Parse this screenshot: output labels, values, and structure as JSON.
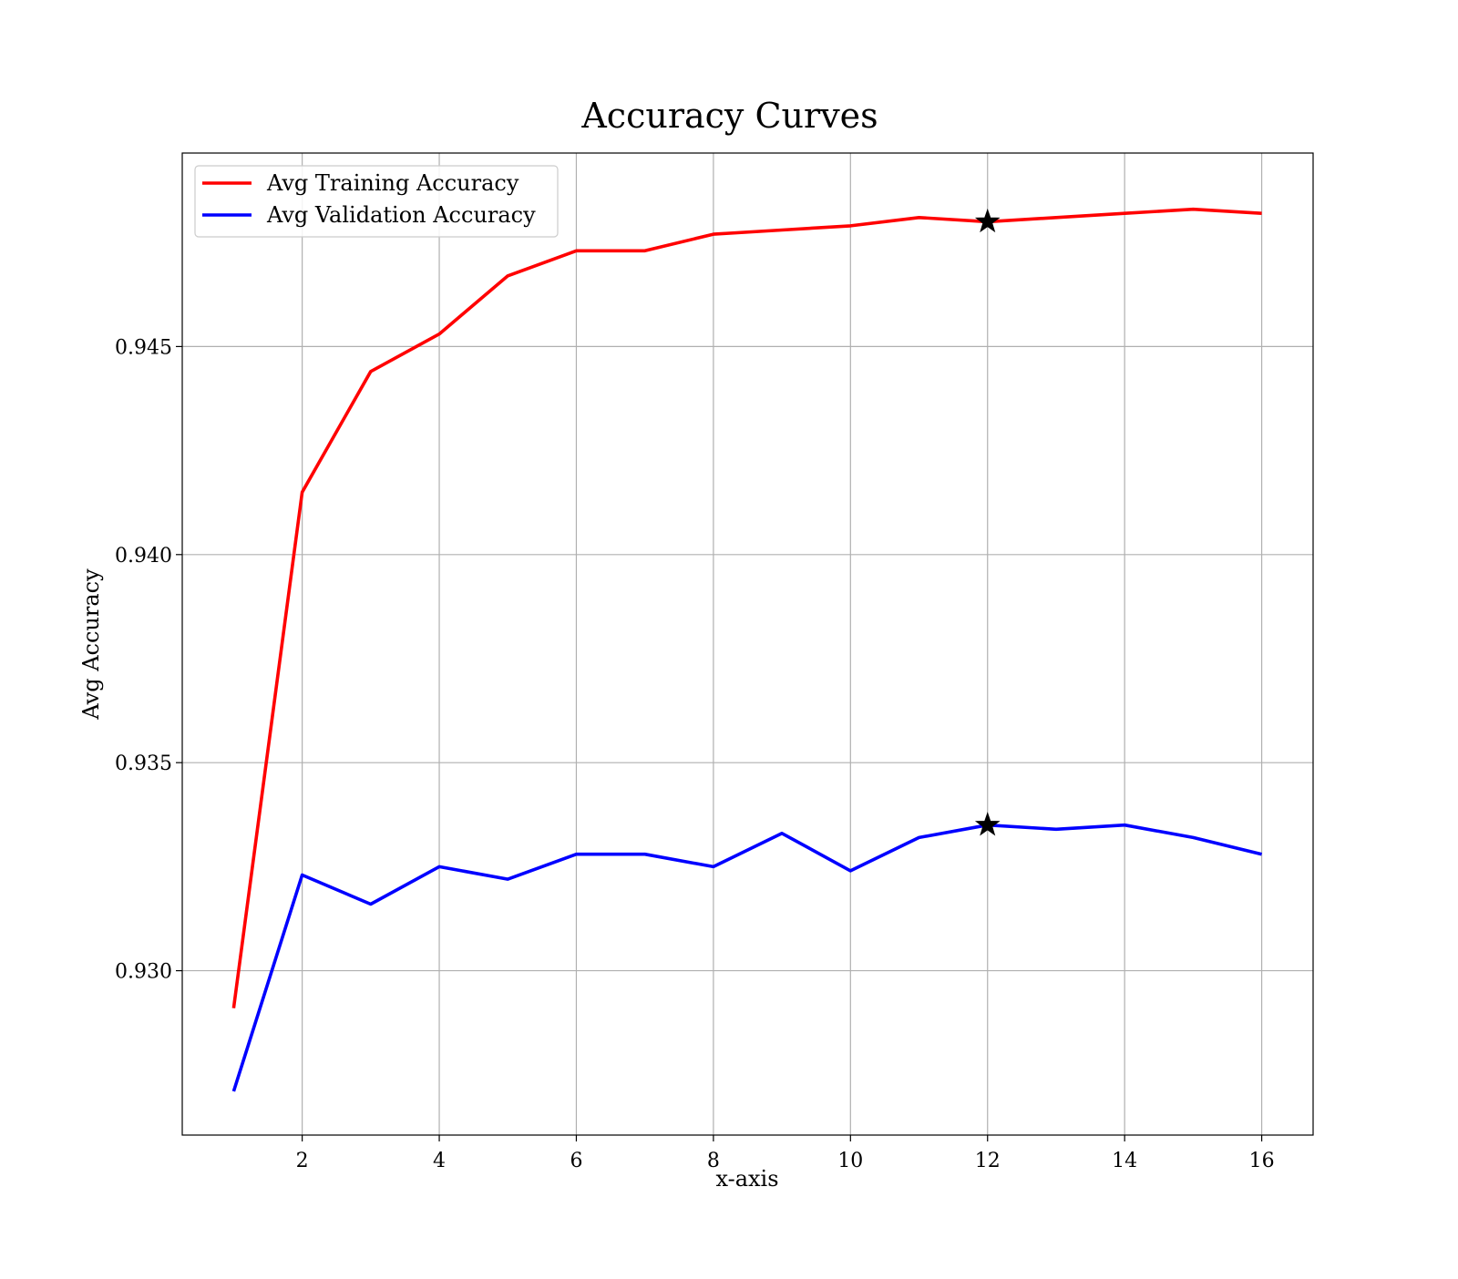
{
  "chart_data": {
    "type": "line",
    "title": "Accuracy Curves",
    "xlabel": "x-axis",
    "ylabel": "Avg Accuracy",
    "xlim": [
      0.25,
      16.75
    ],
    "ylim": [
      0.92605,
      0.94965
    ],
    "xticks": [
      2,
      4,
      6,
      8,
      10,
      12,
      14,
      16
    ],
    "xtick_labels": [
      "2",
      "4",
      "6",
      "8",
      "10",
      "12",
      "14",
      "16"
    ],
    "yticks": [
      0.93,
      0.935,
      0.94,
      0.945
    ],
    "ytick_labels": [
      "0.930",
      "0.935",
      "0.940",
      "0.945"
    ],
    "grid": true,
    "legend_position": "top-left",
    "x": [
      1,
      2,
      3,
      4,
      5,
      6,
      7,
      8,
      9,
      10,
      11,
      12,
      13,
      14,
      15,
      16
    ],
    "series": [
      {
        "name": "Avg Training Accuracy",
        "color": "#ff0000",
        "values": [
          0.9291,
          0.9415,
          0.9444,
          0.9453,
          0.9467,
          0.9473,
          0.9473,
          0.9477,
          0.9478,
          0.9479,
          0.9481,
          0.948,
          0.9481,
          0.9482,
          0.9483,
          0.9482
        ]
      },
      {
        "name": "Avg Validation Accuracy",
        "color": "#0000ff",
        "values": [
          0.9271,
          0.9323,
          0.9316,
          0.9325,
          0.9322,
          0.9328,
          0.9328,
          0.9325,
          0.9333,
          0.9324,
          0.9332,
          0.9335,
          0.9334,
          0.9335,
          0.9332,
          0.9328
        ]
      }
    ],
    "markers": [
      {
        "series": "Avg Training Accuracy",
        "x": 12,
        "y": 0.948,
        "shape": "star",
        "color": "#000000"
      },
      {
        "series": "Avg Validation Accuracy",
        "x": 12,
        "y": 0.9335,
        "shape": "star",
        "color": "#000000"
      }
    ]
  }
}
